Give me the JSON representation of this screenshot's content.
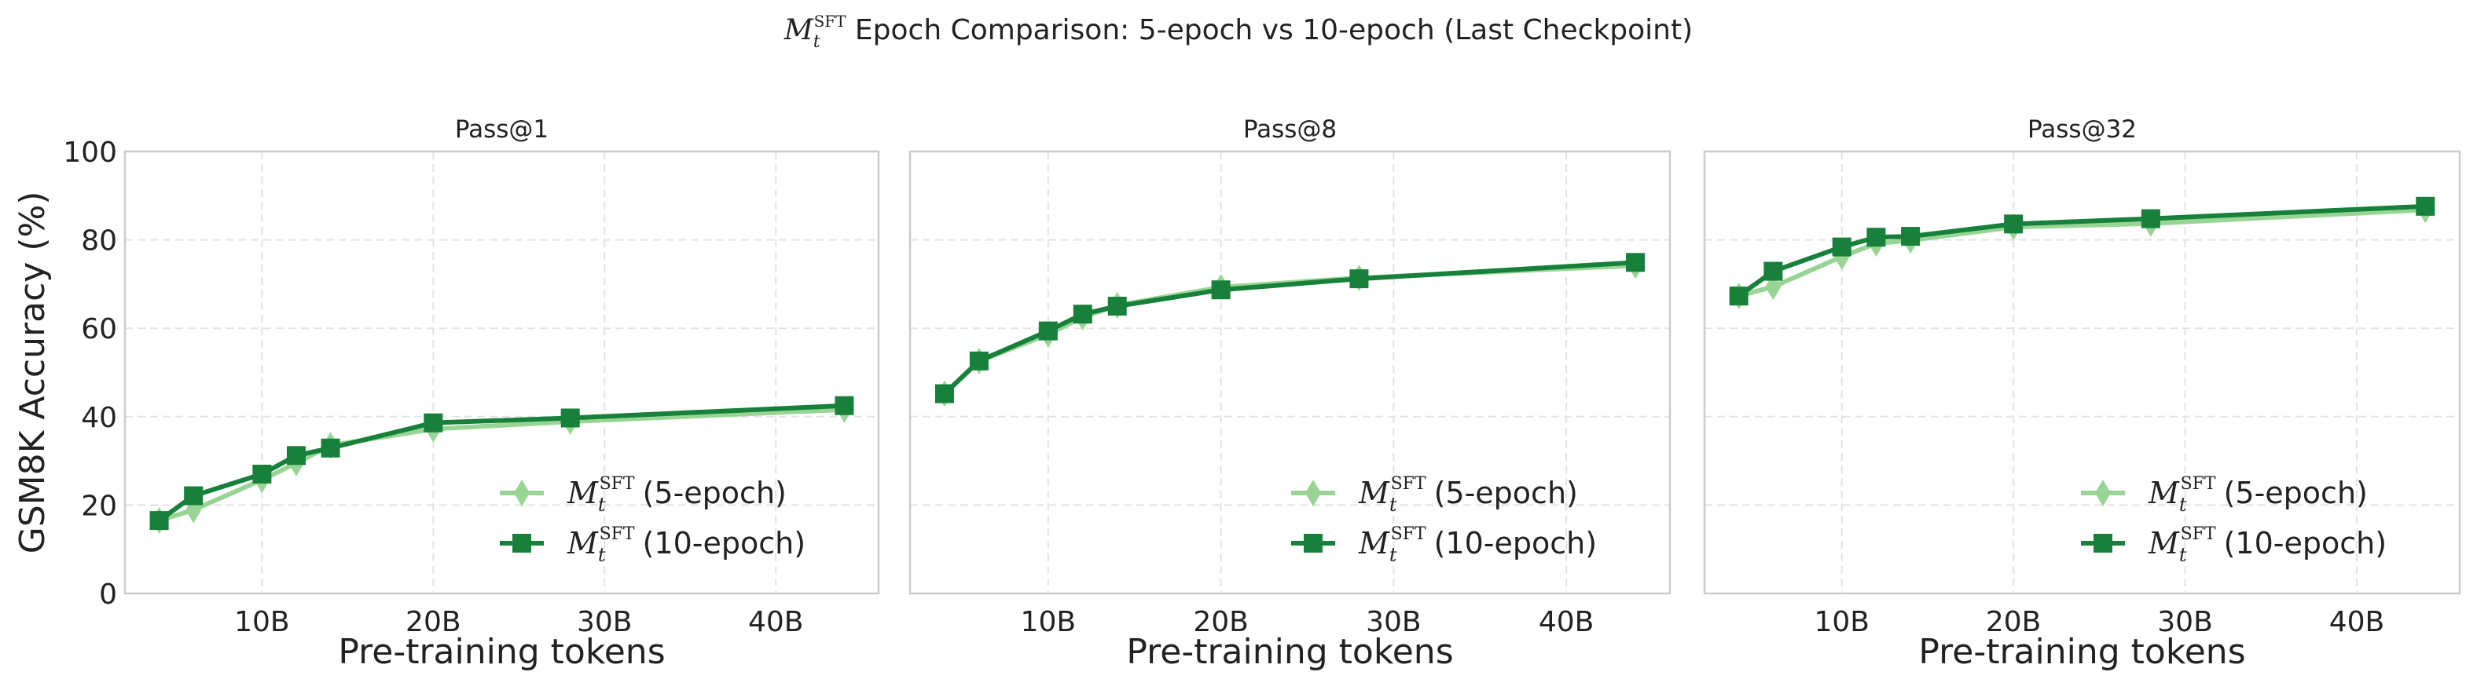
{
  "suptitle": {
    "symbol": "M",
    "sub": "t",
    "sup": "SFT",
    "text": " Epoch Comparison: 5-epoch vs 10-epoch (Last Checkpoint)"
  },
  "colors": {
    "epoch5": "#98d594",
    "epoch10": "#17803b"
  },
  "legend_position": "lower-right",
  "chart_data": [
    {
      "type": "line",
      "title": "Pass@1",
      "xlabel": "Pre-training tokens",
      "ylabel": "GSM8K Accuracy (%)",
      "xlim": [
        2,
        46
      ],
      "ylim": [
        0,
        100
      ],
      "grid": true,
      "xticks": [
        10,
        20,
        30,
        40
      ],
      "xtick_labels": [
        "10B",
        "20B",
        "30B",
        "40B"
      ],
      "yticks": [
        0,
        20,
        40,
        60,
        80,
        100
      ],
      "ytick_labels": [
        "0",
        "20",
        "40",
        "60",
        "80",
        "100"
      ],
      "x": [
        4,
        6,
        10,
        12,
        14,
        20,
        28,
        44
      ],
      "series": [
        {
          "name": "(5-epoch)",
          "marker": "diamond",
          "values": [
            16.5,
            18.9,
            25.7,
            29.5,
            33.5,
            37.2,
            38.9,
            41.6
          ]
        },
        {
          "name": "(10-epoch)",
          "marker": "square",
          "values": [
            16.5,
            22.1,
            27.0,
            31.2,
            32.9,
            38.6,
            39.7,
            42.5
          ]
        }
      ]
    },
    {
      "type": "line",
      "title": "Pass@8",
      "xlabel": "Pre-training tokens",
      "ylabel": "",
      "xlim": [
        2,
        46
      ],
      "ylim": [
        0,
        100
      ],
      "grid": true,
      "xticks": [
        10,
        20,
        30,
        40
      ],
      "xtick_labels": [
        "10B",
        "20B",
        "30B",
        "40B"
      ],
      "yticks": [
        0,
        20,
        40,
        60,
        80,
        100
      ],
      "ytick_labels": [],
      "x": [
        4,
        6,
        10,
        12,
        14,
        20,
        28,
        44
      ],
      "series": [
        {
          "name": "(5-epoch)",
          "marker": "diamond",
          "values": [
            45.2,
            52.6,
            58.6,
            62.5,
            65.2,
            69.3,
            71.4,
            74.2
          ]
        },
        {
          "name": "(10-epoch)",
          "marker": "square",
          "values": [
            45.2,
            52.6,
            59.4,
            63.2,
            65.0,
            68.7,
            71.2,
            74.9
          ]
        }
      ]
    },
    {
      "type": "line",
      "title": "Pass@32",
      "xlabel": "Pre-training tokens",
      "ylabel": "",
      "xlim": [
        2,
        46
      ],
      "ylim": [
        0,
        100
      ],
      "grid": true,
      "xticks": [
        10,
        20,
        30,
        40
      ],
      "xtick_labels": [
        "10B",
        "20B",
        "30B",
        "40B"
      ],
      "yticks": [
        0,
        20,
        40,
        60,
        80,
        100
      ],
      "ytick_labels": [],
      "x": [
        4,
        6,
        10,
        12,
        14,
        20,
        28,
        44
      ],
      "series": [
        {
          "name": "(5-epoch)",
          "marker": "diamond",
          "values": [
            67.3,
            69.4,
            76.2,
            79.2,
            79.9,
            82.9,
            83.7,
            86.8
          ]
        },
        {
          "name": "(10-epoch)",
          "marker": "square",
          "values": [
            67.3,
            72.9,
            78.4,
            80.6,
            80.8,
            83.6,
            84.8,
            87.6
          ]
        }
      ]
    }
  ]
}
